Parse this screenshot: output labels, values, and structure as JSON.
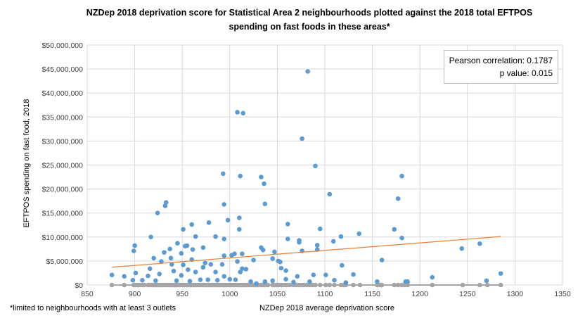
{
  "chart_data": {
    "type": "scatter",
    "title": "NZDep 2018 deprivation score for Statistical Area 2 neighbourhoods plotted against the 2018 total EFTPOS spending on fast foods in these areas*",
    "xlabel": "NZDep 2018 average deprivation score",
    "ylabel": "EFTPOS spending on fast food, 2018",
    "xlim": [
      850,
      1350
    ],
    "ylim": [
      0,
      50000000
    ],
    "x_ticks": [
      "850",
      "900",
      "950",
      "1000",
      "1050",
      "1100",
      "1150",
      "1200",
      "1250",
      "1300",
      "1350"
    ],
    "y_ticks": [
      "$0",
      "$5,000,000",
      "$10,000,000",
      "$15,000,000",
      "$20,000,000",
      "$25,000,000",
      "$30,000,000",
      "$35,000,000",
      "$40,000,000",
      "$45,000,000",
      "$50,000,000"
    ],
    "grid": true,
    "annotation": {
      "line1": "Pearson correlation: 0.1787",
      "line2": "p value: 0.015",
      "placement": "top-right"
    },
    "footnote": "*limited to neighbourhoods with at least 3 outlets",
    "colors": {
      "points": "#5b9bd5",
      "zero_points": "#a5a5a5",
      "trendline": "#ed7d31"
    },
    "trendline": [
      [
        876,
        3700000
      ],
      [
        1285,
        10100000
      ]
    ],
    "series": [
      {
        "points": [
          [
            1082,
            44500000
          ],
          [
            1008,
            36000000
          ],
          [
            1014,
            35800000
          ],
          [
            1076,
            30500000
          ],
          [
            1090,
            24800000
          ],
          [
            993,
            23200000
          ],
          [
            1011,
            22700000
          ],
          [
            1033,
            22500000
          ],
          [
            1036,
            21100000
          ],
          [
            1181,
            22700000
          ],
          [
            1105,
            18900000
          ],
          [
            1177,
            18000000
          ],
          [
            933,
            17200000
          ],
          [
            932,
            16500000
          ],
          [
            994,
            16800000
          ],
          [
            1037,
            16900000
          ],
          [
            924,
            15000000
          ],
          [
            1010,
            14000000
          ],
          [
            998,
            13500000
          ],
          [
            978,
            13000000
          ],
          [
            960,
            12600000
          ],
          [
            1061,
            12700000
          ],
          [
            951,
            11600000
          ],
          [
            1010,
            11600000
          ],
          [
            1095,
            11700000
          ],
          [
            1173,
            11600000
          ],
          [
            1136,
            10700000
          ],
          [
            917,
            10000000
          ],
          [
            985,
            10100000
          ],
          [
            964,
            10100000
          ],
          [
            1117,
            10100000
          ],
          [
            1181,
            9800000
          ],
          [
            994,
            9600000
          ],
          [
            1061,
            9600000
          ],
          [
            1073,
            9300000
          ],
          [
            1073,
            8900000
          ],
          [
            1109,
            9100000
          ],
          [
            900,
            8200000
          ],
          [
            899,
            7100000
          ],
          [
            945,
            8700000
          ],
          [
            937,
            7500000
          ],
          [
            953,
            8100000
          ],
          [
            955,
            8200000
          ],
          [
            972,
            7800000
          ],
          [
            961,
            7400000
          ],
          [
            1033,
            7800000
          ],
          [
            1035,
            7300000
          ],
          [
            1047,
            6900000
          ],
          [
            1076,
            7100000
          ],
          [
            1092,
            8300000
          ],
          [
            1092,
            7400000
          ],
          [
            1244,
            7600000
          ],
          [
            1263,
            8600000
          ],
          [
            931,
            6800000
          ],
          [
            949,
            6600000
          ],
          [
            920,
            5600000
          ],
          [
            938,
            5600000
          ],
          [
            960,
            5300000
          ],
          [
            994,
            6100000
          ],
          [
            1002,
            6200000
          ],
          [
            1005,
            6500000
          ],
          [
            1013,
            6500000
          ],
          [
            1008,
            4900000
          ],
          [
            1025,
            5200000
          ],
          [
            1045,
            5500000
          ],
          [
            1051,
            5000000
          ],
          [
            1053,
            4800000
          ],
          [
            1160,
            5200000
          ],
          [
            928,
            4900000
          ],
          [
            939,
            4300000
          ],
          [
            951,
            4200000
          ],
          [
            974,
            4600000
          ],
          [
            980,
            4300000
          ],
          [
            992,
            4300000
          ],
          [
            916,
            3400000
          ],
          [
            956,
            3200000
          ],
          [
            964,
            2700000
          ],
          [
            972,
            3700000
          ],
          [
            1013,
            3400000
          ],
          [
            1017,
            3300000
          ],
          [
            1054,
            3500000
          ],
          [
            1059,
            3000000
          ],
          [
            1118,
            4100000
          ],
          [
            876,
            2100000
          ],
          [
            889,
            1800000
          ],
          [
            901,
            2500000
          ],
          [
            914,
            1900000
          ],
          [
            926,
            2300000
          ],
          [
            941,
            2900000
          ],
          [
            949,
            2000000
          ],
          [
            985,
            2700000
          ],
          [
            994,
            1800000
          ],
          [
            1011,
            2700000
          ],
          [
            1071,
            1800000
          ],
          [
            1088,
            2100000
          ],
          [
            1101,
            2100000
          ],
          [
            1130,
            2200000
          ],
          [
            1213,
            1600000
          ],
          [
            1285,
            2400000
          ],
          [
            1270,
            900000
          ],
          [
            1155,
            700000
          ],
          [
            1122,
            500000
          ],
          [
            1110,
            1000000
          ],
          [
            1059,
            1200000
          ],
          [
            1037,
            700000
          ],
          [
            1045,
            900000
          ],
          [
            1022,
            700000
          ],
          [
            1000,
            1200000
          ],
          [
            1006,
            1100000
          ],
          [
            987,
            1000000
          ],
          [
            977,
            1100000
          ],
          [
            958,
            800000
          ],
          [
            969,
            1100000
          ],
          [
            944,
            900000
          ],
          [
            922,
            900000
          ],
          [
            908,
            1000000
          ],
          [
            898,
            1000000
          ],
          [
            1185,
            700000
          ],
          [
            1187,
            700000
          ],
          [
            1084,
            700000
          ],
          [
            1028,
            300000
          ],
          [
            1067,
            600000
          ]
        ]
      },
      {
        "zero_x": [
          876,
          889,
          899,
          901,
          903,
          905,
          908,
          910,
          914,
          916,
          918,
          920,
          922,
          924,
          926,
          928,
          930,
          932,
          934,
          936,
          938,
          940,
          942,
          944,
          946,
          948,
          950,
          952,
          954,
          956,
          958,
          960,
          962,
          964,
          966,
          968,
          970,
          972,
          974,
          976,
          978,
          980,
          982,
          984,
          986,
          988,
          990,
          992,
          994,
          996,
          998,
          1000,
          1002,
          1004,
          1006,
          1008,
          1010,
          1012,
          1014,
          1016,
          1018,
          1020,
          1022,
          1024,
          1026,
          1028,
          1030,
          1033,
          1035,
          1037,
          1040,
          1045,
          1047,
          1050,
          1052,
          1055,
          1058,
          1060,
          1063,
          1067,
          1070,
          1073,
          1076,
          1078,
          1081,
          1084,
          1087,
          1090,
          1095,
          1101,
          1105,
          1110,
          1117,
          1120,
          1122,
          1130,
          1137,
          1155,
          1158,
          1160,
          1173,
          1177,
          1181,
          1184,
          1187,
          1213,
          1245,
          1263,
          1271,
          1285
        ]
      }
    ]
  }
}
